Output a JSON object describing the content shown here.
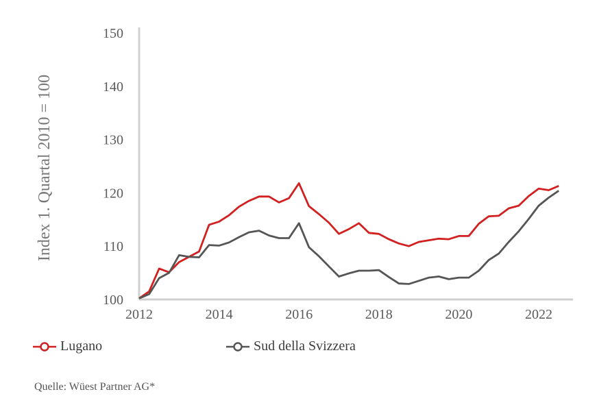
{
  "chart_data": {
    "type": "line",
    "ylabel": "Index 1. Quartal 2010 = 100",
    "xlabel": "",
    "title": "",
    "ylim": [
      100,
      150
    ],
    "xlim": [
      2012,
      2022.6
    ],
    "y_ticks": [
      100,
      110,
      120,
      130,
      140,
      150
    ],
    "x_ticks": [
      2012,
      2014,
      2016,
      2018,
      2020,
      2022
    ],
    "grid": false,
    "legend_position": "bottom-left",
    "series": [
      {
        "name": "Lugano",
        "color": "#d21f1f",
        "x": [
          2012,
          2012.25,
          2012.5,
          2012.75,
          2013,
          2013.25,
          2013.5,
          2013.75,
          2014,
          2014.25,
          2014.5,
          2014.75,
          2015,
          2015.25,
          2015.5,
          2015.75,
          2016,
          2016.25,
          2016.5,
          2016.75,
          2017,
          2017.25,
          2017.5,
          2017.75,
          2018,
          2018.25,
          2018.5,
          2018.75,
          2019,
          2019.25,
          2019.5,
          2019.75,
          2020,
          2020.25,
          2020.5,
          2020.75,
          2021,
          2021.25,
          2021.5,
          2021.75,
          2022,
          2022.25,
          2022.5
        ],
        "values": [
          100.2,
          101.5,
          105.8,
          105.1,
          107.0,
          108.0,
          109.0,
          114.0,
          114.6,
          115.8,
          117.4,
          118.5,
          119.3,
          119.3,
          118.2,
          119.0,
          121.8,
          117.5,
          116.0,
          114.4,
          112.3,
          113.2,
          114.3,
          112.5,
          112.3,
          111.3,
          110.5,
          110.0,
          110.8,
          111.1,
          111.4,
          111.3,
          111.9,
          111.9,
          114.2,
          115.6,
          115.7,
          117.1,
          117.6,
          119.4,
          120.8,
          120.5,
          121.3
        ]
      },
      {
        "name": "Sud della Svizzera",
        "color": "#555555",
        "x": [
          2012,
          2012.25,
          2012.5,
          2012.75,
          2013,
          2013.25,
          2013.5,
          2013.75,
          2014,
          2014.25,
          2014.5,
          2014.75,
          2015,
          2015.25,
          2015.5,
          2015.75,
          2016,
          2016.25,
          2016.5,
          2016.75,
          2017,
          2017.25,
          2017.5,
          2017.75,
          2018,
          2018.25,
          2018.5,
          2018.75,
          2019,
          2019.25,
          2019.5,
          2019.75,
          2020,
          2020.25,
          2020.5,
          2020.75,
          2021,
          2021.25,
          2021.5,
          2021.75,
          2022,
          2022.25,
          2022.5
        ],
        "values": [
          100.2,
          101.0,
          104.0,
          105.0,
          108.3,
          108.0,
          107.9,
          110.2,
          110.1,
          110.7,
          111.7,
          112.6,
          112.9,
          112.0,
          111.5,
          111.5,
          114.3,
          109.8,
          108.1,
          106.2,
          104.3,
          104.9,
          105.4,
          105.4,
          105.5,
          104.2,
          103.0,
          102.9,
          103.5,
          104.1,
          104.3,
          103.8,
          104.1,
          104.1,
          105.4,
          107.4,
          108.6,
          110.8,
          112.8,
          115.1,
          117.6,
          119.1,
          120.4
        ]
      }
    ]
  },
  "legend": {
    "items": [
      {
        "label": "Lugano",
        "color": "#d21f1f"
      },
      {
        "label": "Sud della Svizzera",
        "color": "#555555"
      }
    ]
  },
  "source": "Quelle: Wüest Partner AG*"
}
